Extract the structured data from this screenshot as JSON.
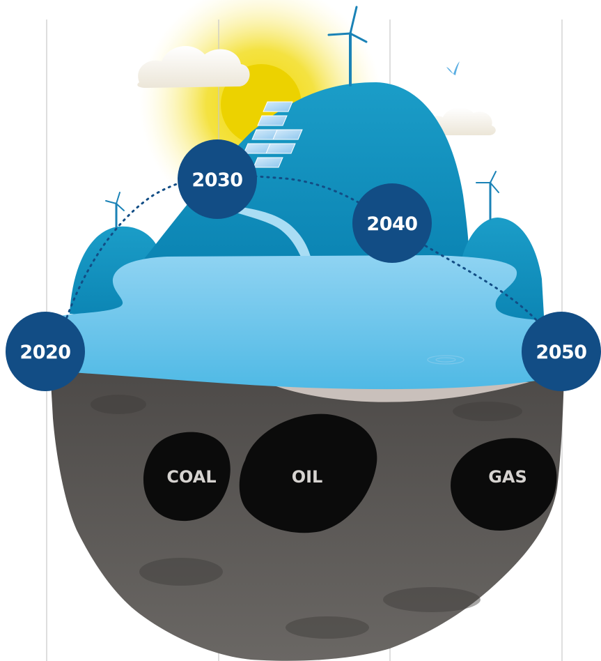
{
  "milestones": [
    {
      "label": "2020"
    },
    {
      "label": "2030"
    },
    {
      "label": "2040"
    },
    {
      "label": "2050"
    }
  ],
  "fossil_fuels": [
    {
      "label": "COAL"
    },
    {
      "label": "OIL"
    },
    {
      "label": "GAS"
    }
  ],
  "colors": {
    "milestone_circle": "#124d85",
    "water": "#62c3ea",
    "hill": "#1698c4",
    "rock": "#5e5b58",
    "fuel_blob": "#0b0b0b",
    "sun": "#f0d800",
    "path_dots": "#124d85"
  },
  "icons": [
    "sun-icon",
    "cloud-icon",
    "wind-turbine-icon",
    "solar-panel-icon",
    "bird-icon",
    "waterfall-icon"
  ]
}
